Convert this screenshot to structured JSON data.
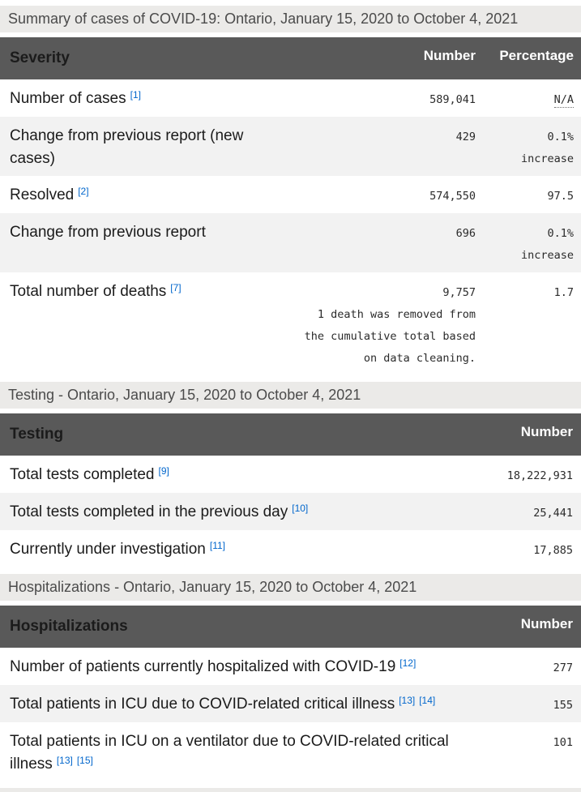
{
  "colors": {
    "table_header_bg": "#595959",
    "table_header_text": "#ffffff",
    "caption_bar_bg": "#ebeae8",
    "zebra_row_bg": "#f2f2f2",
    "footnote_link_blue": "#0066cc",
    "body_text": "#1b1b1b"
  },
  "sections": [
    {
      "caption": "Summary of cases of COVID-19: Ontario, January 15, 2020 to October 4, 2021",
      "columns": {
        "label": "Severity",
        "number": "Number",
        "percentage": "Percentage"
      },
      "rows": [
        {
          "label": "Number of cases",
          "footnotes": [
            "[1]"
          ],
          "number": "589,041",
          "percentage": "N/A"
        },
        {
          "label": "Change from previous report (new cases)",
          "footnotes": [],
          "number": "429",
          "percentage": "0.1%\nincrease"
        },
        {
          "label": "Resolved",
          "footnotes": [
            "[2]"
          ],
          "number": "574,550",
          "percentage": "97.5"
        },
        {
          "label": "Change from previous report",
          "footnotes": [],
          "number": "696",
          "percentage": "0.1%\nincrease"
        },
        {
          "label": "Total number of deaths",
          "footnotes": [
            "[7]"
          ],
          "number": "9,757",
          "number_note": "1 death was removed from\nthe cumulative total based\non data cleaning.",
          "percentage": "1.7"
        }
      ]
    },
    {
      "caption": "Testing - Ontario, January 15, 2020 to October 4, 2021",
      "columns": {
        "label": "Testing",
        "number": "Number"
      },
      "rows": [
        {
          "label": "Total tests completed",
          "footnotes": [
            "[9]"
          ],
          "number": "18,222,931"
        },
        {
          "label": "Total tests completed in the previous day",
          "footnotes": [
            "[10]"
          ],
          "number": "25,441"
        },
        {
          "label": "Currently under investigation",
          "footnotes": [
            "[11]"
          ],
          "number": "17,885"
        }
      ]
    },
    {
      "caption": "Hospitalizations - Ontario, January 15, 2020 to October 4, 2021",
      "columns": {
        "label": "Hospitalizations",
        "number": "Number"
      },
      "rows": [
        {
          "label": "Number of patients currently hospitalized with COVID-19",
          "footnotes": [
            "[12]"
          ],
          "number": "277"
        },
        {
          "label": "Total patients in ICU due to COVID-related critical illness",
          "footnotes": [
            "[13]",
            "[14]"
          ],
          "number": "155"
        },
        {
          "label": "Total patients in ICU on a ventilator due to COVID-related critical illness",
          "footnotes": [
            "[13]",
            "[15]"
          ],
          "number": "101"
        }
      ]
    }
  ]
}
